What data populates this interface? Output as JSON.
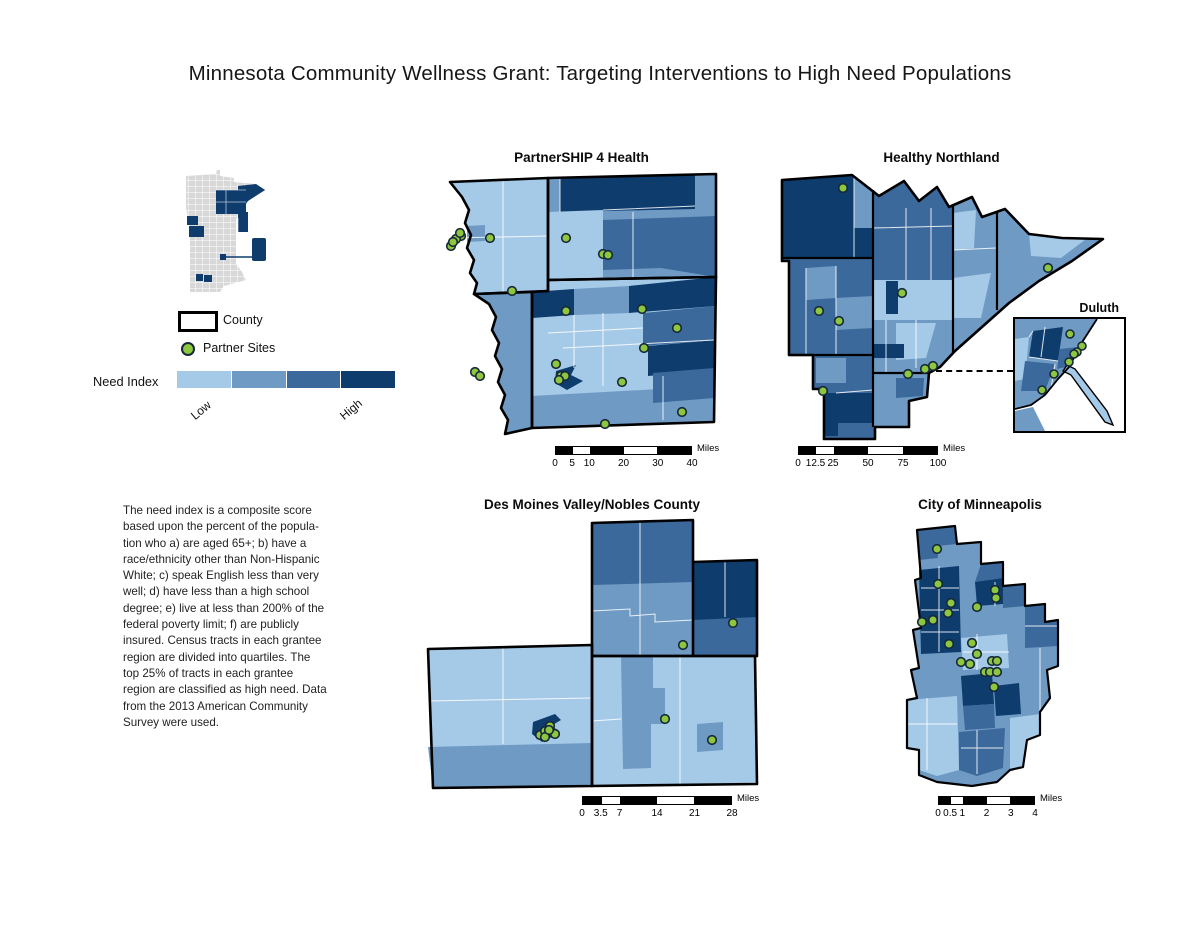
{
  "page": {
    "title": "Minnesota Community Wellness Grant: Targeting Interventions to High Need Populations"
  },
  "colors": {
    "quartile_1": "#a5cae8",
    "quartile_2": "#6f9ac4",
    "quartile_3": "#3c699b",
    "quartile_4": "#0d3c6d",
    "partner_site_green": "#8dc63f",
    "locator_gray": "#d8d8d8"
  },
  "legend": {
    "county_label": "County",
    "partner_sites_label": "Partner Sites",
    "need_index_label": "Need Index",
    "low_label": "Low",
    "high_label": "High"
  },
  "description": "The need index is a composite score\nbased upon the percent of the popula-\ntion who a) are aged 65+; b) have a\nrace/ethnicity other than Non-Hispanic\nWhite; c) speak English less than very\nwell; d) have less than a high school\ndegree; e) live at less than 200% of the\nfederal poverty limit; f) are publicly\ninsured. Census tracts in each grantee\nregion are divided into quartiles. The\ntop 25% of tracts in each grantee\nregion are classified as high need.  Data\nfrom the 2013 American Community\nSurvey were used.",
  "maps": {
    "partnership": {
      "title": "PartnerSHIP 4 Health",
      "scalebar": {
        "ticks": [
          "0",
          "5",
          "10",
          "20",
          "30",
          "40"
        ],
        "unit": "Miles"
      },
      "sites": [
        [
          18,
          68
        ],
        [
          8,
          78
        ],
        [
          13,
          71
        ],
        [
          17,
          65
        ],
        [
          10,
          74
        ],
        [
          47,
          70
        ],
        [
          123,
          70
        ],
        [
          160,
          86
        ],
        [
          165,
          87
        ],
        [
          69,
          123
        ],
        [
          123,
          143
        ],
        [
          199,
          141
        ],
        [
          234,
          160
        ],
        [
          201,
          180
        ],
        [
          113,
          196
        ],
        [
          118,
          208
        ],
        [
          122,
          208
        ],
        [
          116,
          212
        ],
        [
          179,
          214
        ],
        [
          239,
          244
        ],
        [
          162,
          256
        ],
        [
          32,
          204
        ],
        [
          37,
          208
        ]
      ]
    },
    "northland": {
      "title": "Healthy Northland",
      "inset_title": "Duluth",
      "scalebar": {
        "ticks": [
          "0",
          "12.5",
          "25",
          "50",
          "75",
          "100"
        ],
        "unit": "Miles"
      },
      "sites": [
        [
          67,
          20
        ],
        [
          272,
          100
        ],
        [
          43,
          143
        ],
        [
          63,
          153
        ],
        [
          126,
          125
        ],
        [
          47,
          223
        ],
        [
          132,
          206
        ],
        [
          149,
          201
        ],
        [
          157,
          198
        ]
      ],
      "inset_sites": [
        [
          55,
          15
        ],
        [
          67,
          27
        ],
        [
          62,
          33
        ],
        [
          59,
          35
        ],
        [
          54,
          43
        ],
        [
          39,
          55
        ],
        [
          27,
          71
        ]
      ]
    },
    "desmoines": {
      "title": "Des Moines Valley/Nobles County",
      "scalebar": {
        "ticks": [
          "0",
          "3.5",
          "7",
          "14",
          "21",
          "28"
        ],
        "unit": "Miles"
      },
      "sites": [
        [
          308,
          107
        ],
        [
          258,
          129
        ],
        [
          240,
          203
        ],
        [
          287,
          224
        ],
        [
          115,
          219
        ],
        [
          120,
          215
        ],
        [
          125,
          210
        ],
        [
          128,
          217
        ],
        [
          120,
          221
        ],
        [
          130,
          218
        ],
        [
          124,
          214
        ]
      ]
    },
    "minneapolis": {
      "title": "City of Minneapolis",
      "scalebar": {
        "ticks": [
          "0",
          "0.5",
          "1",
          "2",
          "3",
          "4"
        ],
        "unit": "Miles"
      },
      "sites": [
        [
          40,
          31
        ],
        [
          41,
          66
        ],
        [
          54,
          85
        ],
        [
          51,
          95
        ],
        [
          80,
          89
        ],
        [
          98,
          72
        ],
        [
          99,
          80
        ],
        [
          25,
          104
        ],
        [
          36,
          102
        ],
        [
          52,
          126
        ],
        [
          75,
          125
        ],
        [
          80,
          136
        ],
        [
          64,
          144
        ],
        [
          73,
          146
        ],
        [
          95,
          143
        ],
        [
          100,
          143
        ],
        [
          88,
          154
        ],
        [
          93,
          154
        ],
        [
          100,
          154
        ],
        [
          97,
          169
        ]
      ]
    }
  }
}
